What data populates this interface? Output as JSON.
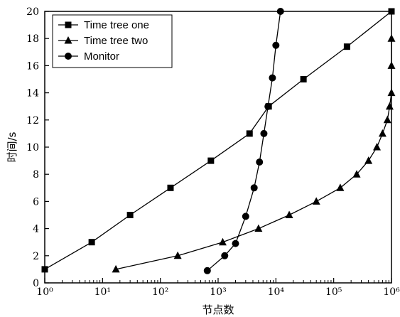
{
  "chart_data": {
    "type": "line",
    "xlabel": "节点数",
    "ylabel": "时间/s",
    "xscale": "log",
    "xlim": [
      1,
      1000000
    ],
    "ylim": [
      0,
      20
    ],
    "x_ticks": [
      1,
      10,
      100,
      1000,
      10000,
      100000,
      1000000
    ],
    "x_tick_labels": [
      "10⁰",
      "10¹",
      "10²",
      "10³",
      "10⁴",
      "10⁵",
      "10⁶"
    ],
    "y_ticks": [
      0,
      2,
      4,
      6,
      8,
      10,
      12,
      14,
      16,
      18,
      20
    ],
    "y_tick_labels": [
      "0",
      "2",
      "4",
      "6",
      "8",
      "10",
      "12",
      "14",
      "16",
      "18",
      "20"
    ],
    "grid": false,
    "legend_position": "top-left",
    "series": [
      {
        "name": "Time tree one",
        "marker": "square",
        "color": "#000000",
        "points": [
          [
            1,
            1
          ],
          [
            6.5,
            3
          ],
          [
            30,
            5
          ],
          [
            150,
            7
          ],
          [
            750,
            9
          ],
          [
            3500,
            11
          ],
          [
            7500,
            13
          ],
          [
            30000,
            15
          ],
          [
            170000,
            17.4
          ],
          [
            1000000,
            20
          ]
        ]
      },
      {
        "name": "Time tree two",
        "marker": "triangle",
        "color": "#000000",
        "points": [
          [
            17,
            1
          ],
          [
            200,
            2
          ],
          [
            1200,
            3
          ],
          [
            5000,
            4
          ],
          [
            17000,
            5
          ],
          [
            50000,
            6
          ],
          [
            130000,
            7
          ],
          [
            250000,
            8
          ],
          [
            400000,
            9
          ],
          [
            560000,
            10
          ],
          [
            700000,
            11
          ],
          [
            850000,
            12
          ],
          [
            930000,
            13
          ],
          [
            1000000,
            14
          ],
          [
            1000000,
            16
          ],
          [
            1000000,
            18
          ]
        ]
      },
      {
        "name": "Monitor",
        "marker": "circle",
        "color": "#000000",
        "points": [
          [
            650,
            0.9
          ],
          [
            1300,
            2
          ],
          [
            2000,
            2.9
          ],
          [
            3000,
            4.9
          ],
          [
            4200,
            7
          ],
          [
            5200,
            8.9
          ],
          [
            6200,
            11
          ],
          [
            7300,
            13
          ],
          [
            8700,
            15.1
          ],
          [
            10000,
            17.5
          ],
          [
            12000,
            20
          ]
        ]
      }
    ]
  }
}
